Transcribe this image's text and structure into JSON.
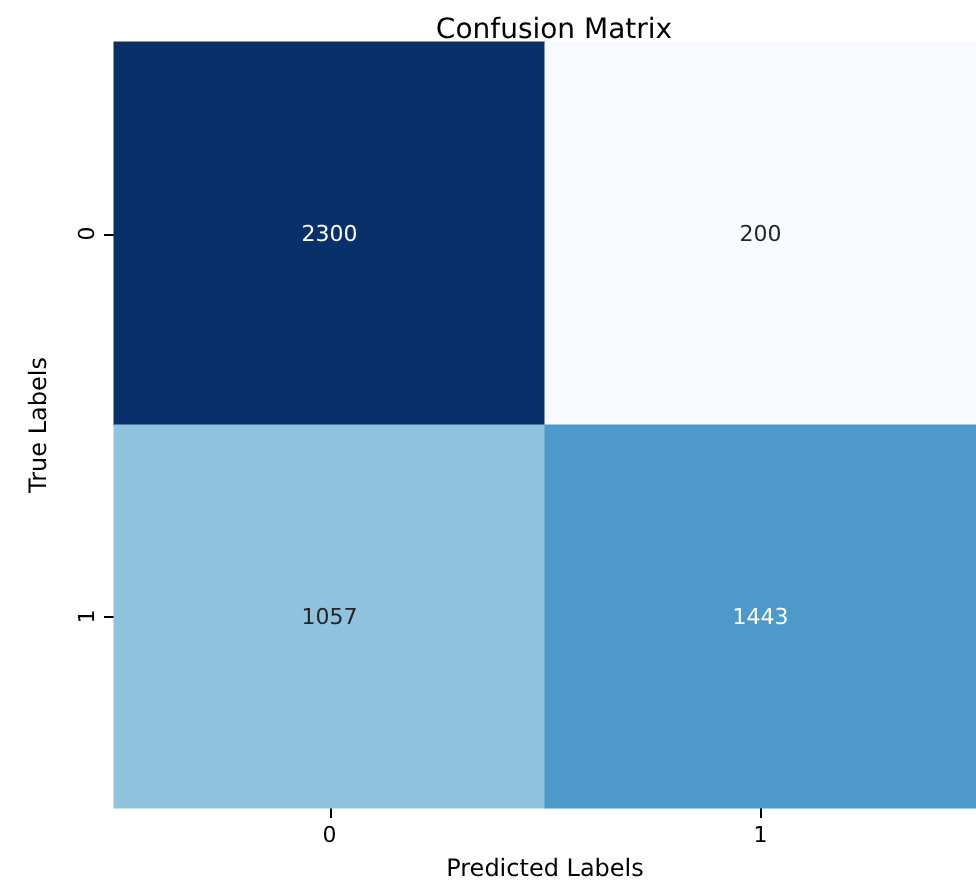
{
  "chart_data": {
    "type": "heatmap",
    "title": "Confusion Matrix",
    "xlabel": "Predicted Labels",
    "ylabel": "True Labels",
    "categories": [
      "0",
      "1"
    ],
    "y_categories": [
      "0",
      "1"
    ],
    "cells": [
      [
        2300,
        200
      ],
      [
        1057,
        1443
      ]
    ],
    "data_labels": true
  }
}
